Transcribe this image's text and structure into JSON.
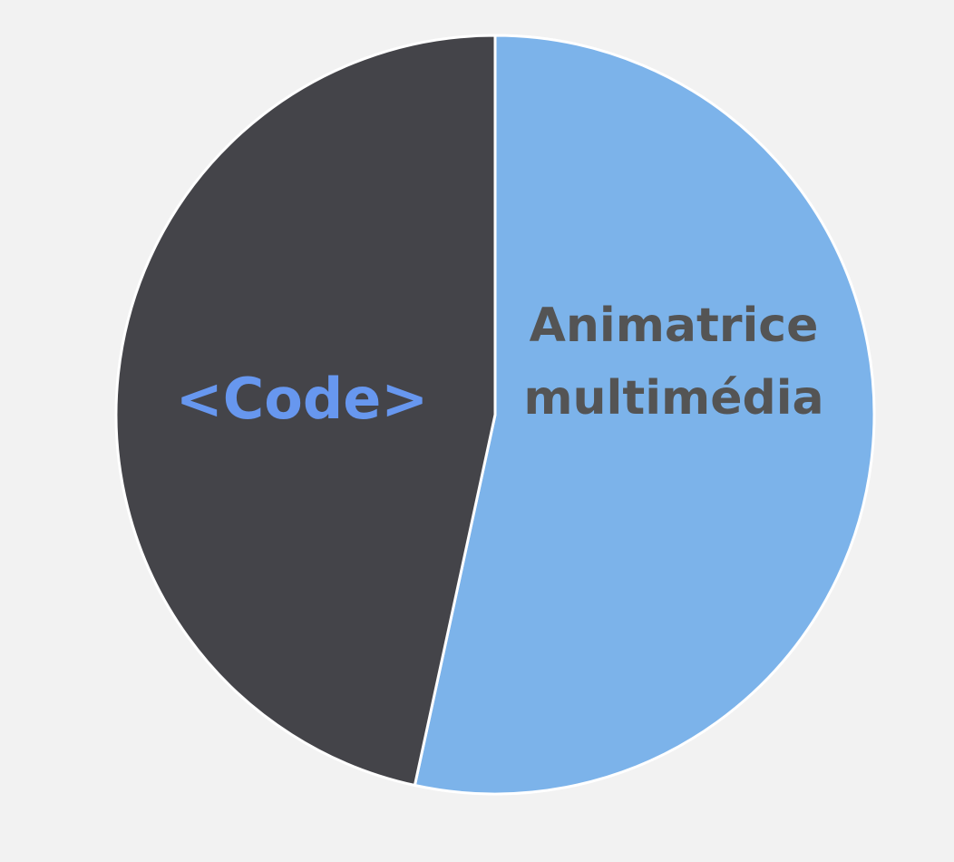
{
  "page": {
    "background": "#f2f2f2"
  },
  "chart_data": {
    "type": "pie",
    "title": "",
    "start": "top",
    "direction": "clockwise",
    "categories": [
      "Animatrice multimédia",
      "<Code>"
    ],
    "values": [
      53.4,
      46.6
    ],
    "slices": [
      {
        "label_lines": [
          "Animatrice",
          "multimédia"
        ],
        "value": 53.4,
        "color": "#7cb3ea",
        "label_color": "#545454"
      },
      {
        "label_lines": [
          "<Code>"
        ],
        "value": 46.6,
        "color": "#444449",
        "label_color": "#6797ef"
      }
    ],
    "slice_border_color": "#ffffff"
  }
}
